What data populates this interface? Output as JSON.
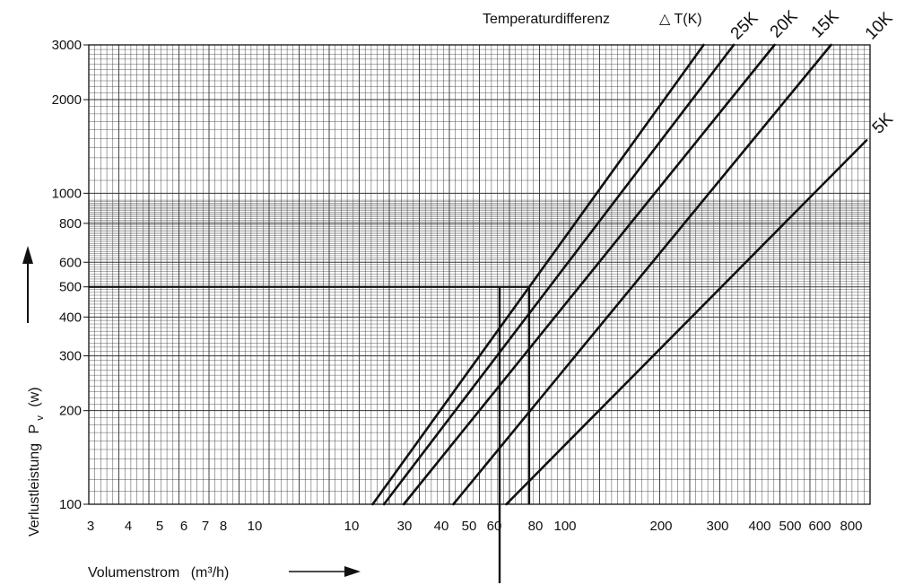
{
  "chart_data": {
    "type": "line",
    "title": "Temperaturdifferenz",
    "legend_title_symbol": "△ T(K)",
    "xlabel": "Volumenstrom",
    "xlabel_unit": "(m³/h)",
    "ylabel": "Verlustleistung",
    "ylabel_symbol": "P",
    "ylabel_subscript": "v",
    "ylabel_unit": "(w)",
    "x_tick_labels": [
      "3",
      "4",
      "5",
      "6",
      "7",
      "8",
      "10",
      "10",
      "30",
      "40",
      "50",
      "60",
      "80",
      "100",
      "200",
      "300",
      "400",
      "500",
      "600",
      "800"
    ],
    "y_tick_labels": [
      "100",
      "200",
      "300",
      "400",
      "500",
      "600",
      "800",
      "1000",
      "2000",
      "3000"
    ],
    "ylim": [
      100,
      3000
    ],
    "y_scale": "log",
    "grid": true,
    "series": [
      {
        "name": "25K",
        "points": [
          [
            16.5,
            100
          ],
          [
            248,
            3000
          ]
        ]
      },
      {
        "name": "20K",
        "points": [
          [
            20.5,
            100
          ],
          [
            308,
            3000
          ]
        ]
      },
      {
        "name": "15K",
        "points": [
          [
            27.5,
            100
          ],
          [
            413,
            3000
          ]
        ]
      },
      {
        "name": "10K",
        "points": [
          [
            41,
            100
          ],
          [
            620,
            3000
          ]
        ]
      },
      {
        "name": "5K",
        "points": [
          [
            60,
            100
          ],
          [
            800,
            1480
          ]
        ]
      }
    ],
    "annotation": {
      "power": 500,
      "flow_25K": 60,
      "flow_20K": 75,
      "flow_axis_value": 60
    }
  }
}
